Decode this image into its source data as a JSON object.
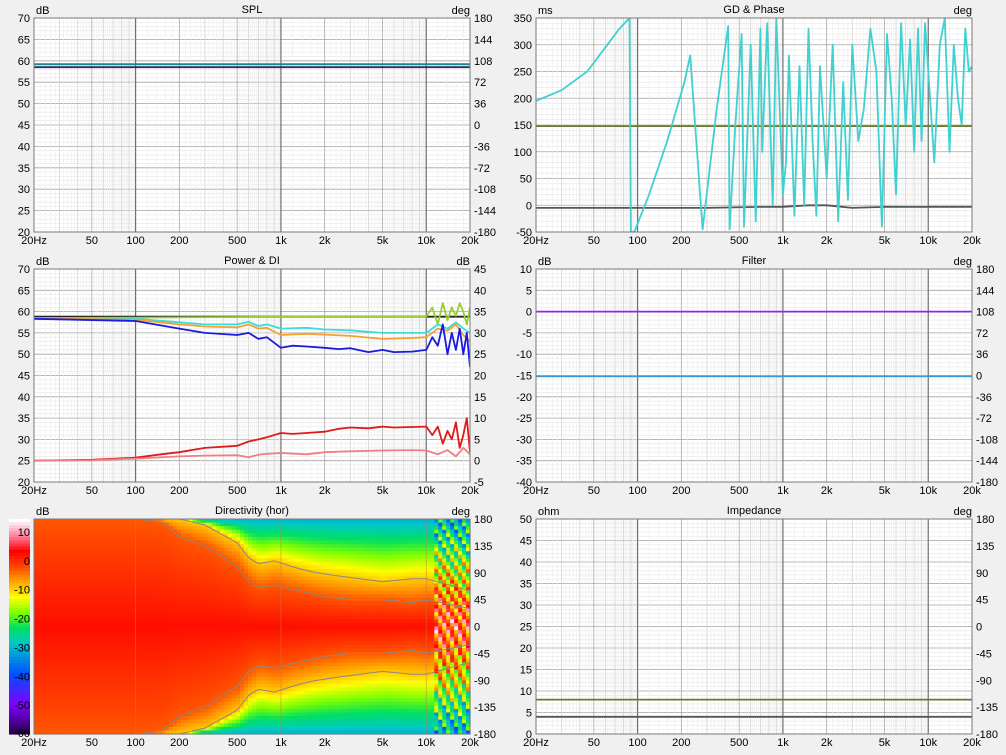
{
  "x_ticks": [
    "20Hz",
    "50",
    "100",
    "200",
    "500",
    "1k",
    "2k",
    "5k",
    "10k",
    "20k"
  ],
  "charts": {
    "spl": {
      "title": "SPL",
      "left_unit": "dB",
      "right_unit": "deg",
      "left_ticks": [
        "70",
        "65",
        "60",
        "55",
        "50",
        "45",
        "40",
        "35",
        "30",
        "25",
        "20"
      ],
      "right_ticks": [
        "180",
        "144",
        "108",
        "72",
        "36",
        "0",
        "-36",
        "-72",
        "-108",
        "-144",
        "-180"
      ]
    },
    "gd": {
      "title": "GD & Phase",
      "left_unit": "ms",
      "right_unit": "deg",
      "left_ticks": [
        "350",
        "300",
        "250",
        "200",
        "150",
        "100",
        "50",
        "0",
        "-50"
      ],
      "right_ticks": []
    },
    "power": {
      "title": "Power & DI",
      "left_unit": "dB",
      "right_unit": "dB",
      "left_ticks": [
        "70",
        "65",
        "60",
        "55",
        "50",
        "45",
        "40",
        "35",
        "30",
        "25",
        "20"
      ],
      "right_ticks": [
        "45",
        "40",
        "35",
        "30",
        "25",
        "20",
        "15",
        "10",
        "5",
        "0",
        "-5"
      ]
    },
    "filter": {
      "title": "Filter",
      "left_unit": "dB",
      "right_unit": "deg",
      "left_ticks": [
        "10",
        "5",
        "0",
        "-5",
        "-10",
        "-15",
        "-20",
        "-25",
        "-30",
        "-35",
        "-40"
      ],
      "right_ticks": [
        "180",
        "144",
        "108",
        "72",
        "36",
        "0",
        "-36",
        "-72",
        "-108",
        "-144",
        "-180"
      ]
    },
    "directivity": {
      "title": "Directivity (hor)",
      "left_unit": "dB",
      "right_unit": "deg",
      "left_ticks": [
        "10",
        "0",
        "-10",
        "-20",
        "-30",
        "-40",
        "-50",
        "-60"
      ],
      "right_ticks": [
        "180",
        "135",
        "90",
        "45",
        "0",
        "-45",
        "-90",
        "-135",
        "-180"
      ]
    },
    "impedance": {
      "title": "Impedance",
      "left_unit": "ohm",
      "right_unit": "deg",
      "left_ticks": [
        "50",
        "45",
        "40",
        "35",
        "30",
        "25",
        "20",
        "15",
        "10",
        "5",
        "0"
      ],
      "right_ticks": [
        "180",
        "135",
        "90",
        "45",
        "0",
        "-45",
        "-90",
        "-135",
        "-180"
      ]
    }
  },
  "chart_data": [
    {
      "type": "line",
      "title": "SPL",
      "ylabel": "dB",
      "ylim": [
        20,
        70
      ],
      "x_scale": "log",
      "xlim": [
        20,
        20000
      ],
      "series": [
        {
          "color": "#1a8a8a",
          "x": [
            20,
            20000
          ],
          "y": [
            59.2,
            59.2
          ]
        },
        {
          "color": "#2a2a6a",
          "x": [
            20,
            20000
          ],
          "y": [
            58.5,
            58.5
          ]
        }
      ]
    },
    {
      "type": "line",
      "title": "GD & Phase",
      "ylabel": "ms",
      "ylim": [
        -50,
        350
      ],
      "x_scale": "log",
      "xlim": [
        20,
        20000
      ],
      "series": [
        {
          "color": "#6b7a2a",
          "x": [
            20,
            20000
          ],
          "y": [
            148,
            148
          ]
        },
        {
          "color": "#555555",
          "x": [
            20,
            100,
            300,
            700,
            1000,
            1500,
            2000,
            3000,
            5000,
            10000,
            20000
          ],
          "y": [
            -5,
            -5,
            -5,
            -3,
            -3,
            0,
            0,
            -5,
            -3,
            -3,
            -3
          ]
        },
        {
          "color": "#40d0d0",
          "note_free": true,
          "x": [
            20,
            30,
            45,
            60,
            75,
            88,
            90,
            95,
            120,
            160,
            210,
            230,
            280,
            350,
            420,
            430,
            470,
            520,
            540,
            600,
            650,
            700,
            720,
            780,
            850,
            900,
            1000,
            1050,
            1100,
            1200,
            1300,
            1400,
            1500,
            1600,
            1700,
            1800,
            2000,
            2200,
            2400,
            2600,
            2800,
            3000,
            3300,
            3600,
            4000,
            4400,
            4800,
            5200,
            5600,
            6000,
            6500,
            7000,
            7500,
            8000,
            8500,
            9000,
            9500,
            10000,
            11000,
            12000,
            13000,
            14000,
            15000,
            16000,
            17000,
            18000,
            19000,
            20000
          ],
          "y": [
            195,
            215,
            250,
            295,
            330,
            352,
            -50,
            -50,
            20,
            120,
            230,
            280,
            -45,
            180,
            335,
            -45,
            150,
            320,
            -40,
            300,
            -30,
            330,
            100,
            340,
            0,
            350,
            20,
            80,
            280,
            -20,
            260,
            0,
            330,
            120,
            -20,
            260,
            50,
            300,
            -30,
            230,
            10,
            300,
            120,
            180,
            330,
            250,
            -40,
            320,
            200,
            20,
            340,
            150,
            310,
            100,
            330,
            120,
            340,
            250,
            80,
            300,
            350,
            100,
            300,
            200,
            150,
            330,
            250,
            260
          ]
        }
      ]
    },
    {
      "type": "line",
      "title": "Power & DI",
      "ylabel": "dB",
      "ylim": [
        20,
        70
      ],
      "y2label": "dB",
      "y2lim": [
        -5,
        45
      ],
      "x_scale": "log",
      "xlim": [
        20,
        20000
      ],
      "series": [
        {
          "color": "#222222",
          "axis": "left",
          "x": [
            20,
            20000
          ],
          "y": [
            58.8,
            58.8
          ]
        },
        {
          "color": "#9acd32",
          "axis": "left",
          "x": [
            20,
            100,
            1000,
            10000,
            11000,
            12000,
            13000,
            14000,
            15000,
            16000,
            17000,
            18000,
            19000,
            20000
          ],
          "y": [
            58.5,
            58.6,
            58.8,
            58.8,
            61,
            57,
            62,
            58,
            61,
            59,
            62,
            60,
            57,
            61
          ]
        },
        {
          "color": "#3cdcdc",
          "axis": "left",
          "x": [
            20,
            100,
            200,
            300,
            500,
            600,
            700,
            800,
            1000,
            1500,
            2000,
            3000,
            5000,
            8000,
            10000,
            11000,
            12000,
            14000,
            16000,
            18000,
            20000
          ],
          "y": [
            58.5,
            58.3,
            57.5,
            57,
            57,
            57.6,
            56.6,
            57,
            56,
            56.2,
            55.8,
            55.6,
            55,
            55,
            55,
            56,
            57,
            56,
            57.5,
            56,
            55
          ]
        },
        {
          "color": "#f5a030",
          "axis": "left",
          "x": [
            20,
            100,
            200,
            300,
            500,
            600,
            700,
            800,
            1000,
            1500,
            2000,
            3000,
            5000,
            8000,
            10000,
            11000,
            12000,
            14000,
            16000,
            18000,
            20000
          ],
          "y": [
            58.4,
            58.1,
            57,
            56.5,
            56.3,
            57,
            56,
            56.2,
            54.5,
            54.8,
            54.6,
            54.3,
            53.6,
            53.8,
            54,
            55,
            56,
            55.5,
            57,
            54.5,
            53
          ]
        },
        {
          "color": "#1a1ae0",
          "axis": "left",
          "x": [
            20,
            100,
            200,
            300,
            500,
            600,
            700,
            800,
            1000,
            1200,
            1500,
            2000,
            2500,
            3000,
            4000,
            5000,
            6000,
            8000,
            10000,
            11000,
            12000,
            13000,
            14000,
            15000,
            16000,
            17000,
            18000,
            19000,
            20000
          ],
          "y": [
            58.3,
            57.8,
            56,
            55,
            54.5,
            55,
            53.6,
            54,
            51.5,
            52,
            51.8,
            51.5,
            51.2,
            51.4,
            50.5,
            51,
            50.5,
            50.6,
            51,
            54,
            52,
            57,
            50,
            55,
            51,
            56,
            50,
            55,
            47
          ]
        },
        {
          "color": "#e01a1a",
          "axis": "right",
          "x": [
            20,
            50,
            100,
            150,
            200,
            300,
            500,
            600,
            700,
            800,
            1000,
            1200,
            1500,
            2000,
            2500,
            3000,
            4000,
            5000,
            6000,
            8000,
            10000,
            11000,
            12000,
            13000,
            14000,
            15000,
            16000,
            17000,
            18000,
            19000,
            20000
          ],
          "y": [
            0,
            0.2,
            0.7,
            1.5,
            2,
            3,
            3.5,
            4.5,
            5,
            5.5,
            6.5,
            6.3,
            6.5,
            6.8,
            7.5,
            7.8,
            7.6,
            8,
            7.8,
            7.9,
            8,
            6,
            8,
            4,
            7,
            5,
            9,
            3,
            6,
            10,
            2
          ]
        },
        {
          "color": "#f08080",
          "axis": "right",
          "x": [
            20,
            50,
            100,
            200,
            300,
            500,
            600,
            700,
            800,
            1000,
            1500,
            2000,
            3000,
            5000,
            8000,
            10000,
            12000,
            14000,
            16000,
            18000,
            20000
          ],
          "y": [
            0,
            0.1,
            0.5,
            1,
            1.2,
            1.3,
            0.8,
            1.4,
            1.6,
            1.8,
            1.5,
            2,
            2.2,
            2.4,
            2.5,
            2.4,
            1.5,
            2.5,
            1,
            3,
            1.5
          ]
        }
      ]
    },
    {
      "type": "line",
      "title": "Filter",
      "ylabel": "dB",
      "ylim": [
        -40,
        10
      ],
      "x_scale": "log",
      "xlim": [
        20,
        20000
      ],
      "series": [
        {
          "color": "#8a2be2",
          "x": [
            20,
            20000
          ],
          "y": [
            0,
            0
          ]
        },
        {
          "color": "#3a9ad9",
          "x": [
            20,
            20000
          ],
          "y": [
            -15.2,
            -15.2
          ]
        }
      ]
    },
    {
      "type": "heatmap",
      "title": "Directivity (hor)",
      "ylabel": "deg",
      "ylim": [
        -180,
        180
      ],
      "x_scale": "log",
      "xlim": [
        20,
        20000
      ],
      "colorbar": {
        "label": "dB",
        "min": -60,
        "max": 10,
        "stops": [
          [
            10,
            "#ffffff"
          ],
          [
            5,
            "#ff80a0"
          ],
          [
            0,
            "#ff0000"
          ],
          [
            -5,
            "#ff4500"
          ],
          [
            -10,
            "#ffa500"
          ],
          [
            -15,
            "#ffff00"
          ],
          [
            -20,
            "#7fff00"
          ],
          [
            -25,
            "#00e060"
          ],
          [
            -30,
            "#00c8c8"
          ],
          [
            -40,
            "#0050ff"
          ],
          [
            -50,
            "#8000ff"
          ],
          [
            -60,
            "#200040"
          ]
        ]
      },
      "beamwidth_edge_deg": {
        "x": [
          20,
          100,
          150,
          200,
          300,
          500,
          600,
          700,
          900,
          1200,
          1600,
          2000,
          3000,
          5000,
          8000,
          10000,
          20000
        ],
        "minus6dB": [
          180,
          180,
          175,
          150,
          135,
          100,
          75,
          65,
          70,
          62,
          55,
          50,
          45,
          45,
          40,
          45,
          30
        ],
        "minus12dB": [
          180,
          180,
          180,
          180,
          170,
          140,
          115,
          105,
          110,
          100,
          92,
          88,
          82,
          75,
          80,
          80,
          60
        ]
      }
    },
    {
      "type": "line",
      "title": "Impedance",
      "ylabel": "ohm",
      "ylim": [
        0,
        50
      ],
      "x_scale": "log",
      "xlim": [
        20,
        20000
      ],
      "series": [
        {
          "color": "#6b7a2a",
          "x": [
            20,
            20000
          ],
          "y": [
            8,
            8
          ]
        },
        {
          "color": "#555555",
          "x": [
            20,
            20000
          ],
          "y": [
            4,
            4
          ]
        }
      ]
    }
  ]
}
